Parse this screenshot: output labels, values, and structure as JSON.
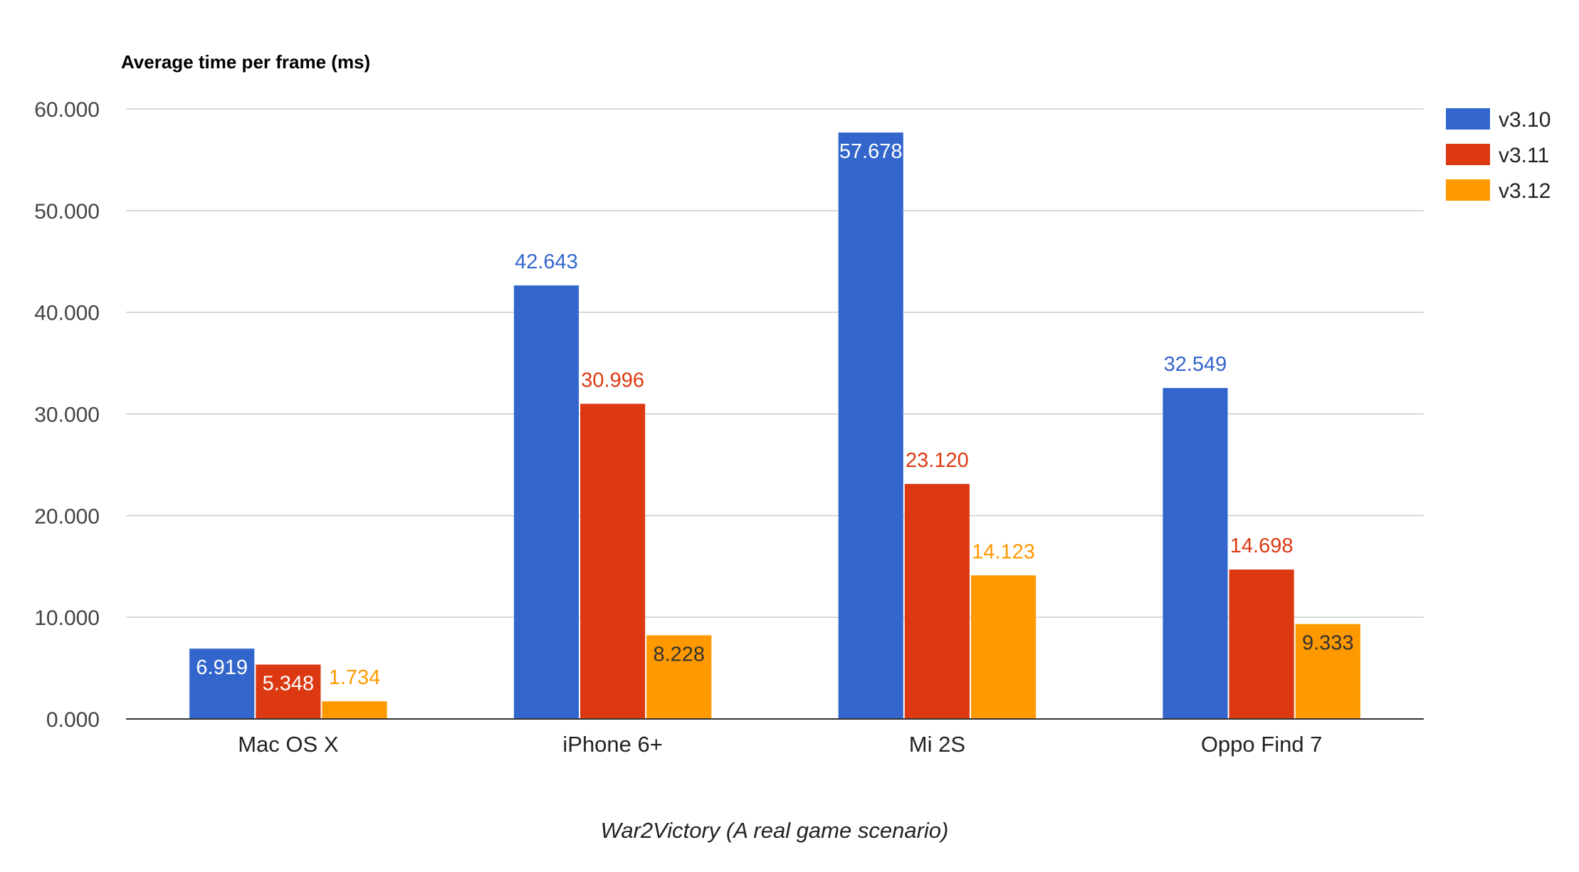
{
  "chart_data": {
    "type": "bar",
    "title": "Average time per frame (ms)",
    "xlabel": "War2Victory (A real game scenario)",
    "ylabel": "",
    "categories": [
      "Mac OS X",
      "iPhone 6+",
      "Mi 2S",
      "Oppo Find 7"
    ],
    "series": [
      {
        "name": "v3.10",
        "color": "#3366cc",
        "values": [
          6.919,
          42.643,
          57.678,
          32.549
        ]
      },
      {
        "name": "v3.11",
        "color": "#dc3912",
        "values": [
          5.348,
          30.996,
          23.12,
          14.698
        ]
      },
      {
        "name": "v3.12",
        "color": "#ff9900",
        "values": [
          1.734,
          8.228,
          14.123,
          9.333
        ]
      }
    ],
    "data_labels": [
      [
        "6.919",
        "42.643",
        "57.678",
        "32.549"
      ],
      [
        "5.348",
        "30.996",
        "23.120",
        "14.698"
      ],
      [
        "1.734",
        "8.228",
        "14.123",
        "9.333"
      ]
    ],
    "label_placement": [
      [
        "inside",
        "above",
        "inside",
        "above"
      ],
      [
        "inside",
        "above",
        "above",
        "above"
      ],
      [
        "above",
        "inside",
        "above",
        "inside"
      ]
    ],
    "ylim": [
      0,
      60
    ],
    "yticks": [
      0,
      10,
      20,
      30,
      40,
      50,
      60
    ],
    "ytick_labels": [
      "0.000",
      "10.000",
      "20.000",
      "30.000",
      "40.000",
      "50.000",
      "60.000"
    ],
    "grid": true,
    "legend_position": "right"
  }
}
